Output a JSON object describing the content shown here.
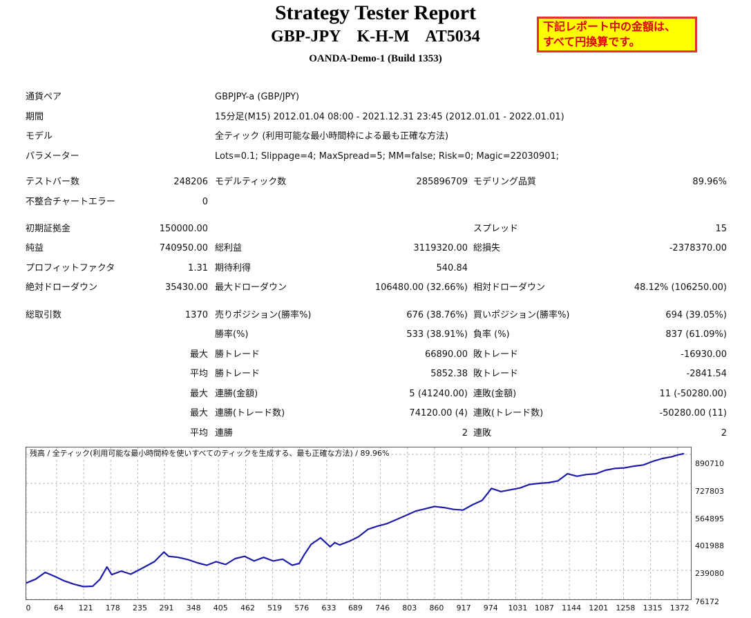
{
  "header": {
    "title": "Strategy Tester Report",
    "subtitle": "GBP-JPY    K-H-M    AT5034",
    "server": "OANDA-Demo-1 (Build 1353)",
    "notice_line1": "下記レポート中の金額は、",
    "notice_line2": "すべて円換算です。"
  },
  "settings": {
    "symbol_label": "通貨ペア",
    "symbol_value": "GBPJPY-a (GBP/JPY)",
    "period_label": "期間",
    "period_value": "15分足(M15) 2012.01.04 08:00 - 2021.12.31 23:45 (2012.01.01 - 2022.01.01)",
    "model_label": "モデル",
    "model_value": "全ティック (利用可能な最小時間枠による最も正確な方法)",
    "params_label": "パラメーター",
    "params_value": "Lots=0.1; Slippage=4; MaxSpread=5; MM=false; Risk=0; Magic=22030901;"
  },
  "stats": {
    "bars_label": "テストバー数",
    "bars_value": "248206",
    "ticks_label": "モデルティック数",
    "ticks_value": "285896709",
    "quality_label": "モデリング品質",
    "quality_value": "89.96%",
    "mismatch_label": "不整合チャートエラー",
    "mismatch_value": "0",
    "deposit_label": "初期証拠金",
    "deposit_value": "150000.00",
    "spread_label": "スプレッド",
    "spread_value": "15",
    "net_label": "純益",
    "net_value": "740950.00",
    "gross_profit_label": "総利益",
    "gross_profit_value": "3119320.00",
    "gross_loss_label": "総損失",
    "gross_loss_value": "-2378370.00",
    "pf_label": "プロフィットファクタ",
    "pf_value": "1.31",
    "payoff_label": "期待利得",
    "payoff_value": "540.84",
    "abs_dd_label": "絶対ドローダウン",
    "abs_dd_value": "35430.00",
    "max_dd_label": "最大ドローダウン",
    "max_dd_value": "106480.00 (32.66%)",
    "rel_dd_label": "相対ドローダウン",
    "rel_dd_value": "48.12% (106250.00)",
    "trades_label": "総取引数",
    "trades_value": "1370",
    "short_label": "売りポジション(勝率%)",
    "short_value": "676 (38.76%)",
    "long_label": "買いポジション(勝率%)",
    "long_value": "694 (39.05%)",
    "win_rate_label": "勝率(%)",
    "win_rate_value": "533 (38.91%)",
    "loss_rate_label": "負率 (%)",
    "loss_rate_value": "837 (61.09%)",
    "largest_label": "最大",
    "largest_win_label": "勝トレード",
    "largest_win_value": "66890.00",
    "largest_loss_label": "敗トレード",
    "largest_loss_value": "-16930.00",
    "average_label": "平均",
    "average_win_label": "勝トレード",
    "average_win_value": "5852.38",
    "average_loss_label": "敗トレード",
    "average_loss_value": "-2841.54",
    "max_label_a": "最大",
    "consec_wins_money_label": "連勝(金額)",
    "consec_wins_money_value": "5 (41240.00)",
    "consec_losses_money_label": "連敗(金額)",
    "consec_losses_money_value": "11 (-50280.00)",
    "max_label_b": "最大",
    "consec_wins_count_label": "連勝(トレード数)",
    "consec_wins_count_value": "74120.00 (4)",
    "consec_losses_count_label": "連敗(トレード数)",
    "consec_losses_count_value": "-50280.00 (11)",
    "avg_label_b": "平均",
    "avg_consec_wins_label": "連勝",
    "avg_consec_wins_value": "2",
    "avg_consec_losses_label": "連敗",
    "avg_consec_losses_value": "2"
  },
  "chart_data": {
    "type": "line",
    "legend": "残高 / 全ティック(利用可能な最小時間枠を使いすべてのティックを生成する、最も正確な方法) / 89.96%",
    "color": "#1c1ca8",
    "grid": true,
    "xlim": [
      0,
      1400
    ],
    "ylim": [
      76172,
      930000
    ],
    "x_ticks": [
      "0",
      "64",
      "121",
      "178",
      "235",
      "291",
      "348",
      "405",
      "462",
      "519",
      "576",
      "633",
      "689",
      "746",
      "803",
      "860",
      "917",
      "974",
      "1031",
      "1087",
      "1144",
      "1201",
      "1258",
      "1315",
      "1372"
    ],
    "y_ticks": [
      "890710",
      "727803",
      "564895",
      "401988",
      "239080",
      "76172"
    ],
    "series": [
      {
        "x": [
          0,
          20,
          40,
          60,
          80,
          100,
          120,
          140,
          155,
          170,
          180,
          200,
          220,
          240,
          270,
          290,
          300,
          320,
          340,
          360,
          380,
          400,
          420,
          440,
          460,
          480,
          500,
          520,
          540,
          560,
          575,
          585,
          600,
          620,
          640,
          650,
          660,
          680,
          700,
          720,
          740,
          760,
          780,
          800,
          820,
          840,
          860,
          880,
          900,
          920,
          940,
          960,
          980,
          1000,
          1020,
          1040,
          1060,
          1080,
          1100,
          1120,
          1140,
          1160,
          1180,
          1200,
          1220,
          1240,
          1260,
          1280,
          1300,
          1320,
          1340,
          1360,
          1372,
          1385
        ],
        "y": [
          168000,
          190000,
          228000,
          205000,
          180000,
          162000,
          148000,
          150000,
          188000,
          258000,
          215000,
          235000,
          218000,
          245000,
          288000,
          342000,
          318000,
          312000,
          300000,
          282000,
          268000,
          288000,
          272000,
          305000,
          318000,
          292000,
          312000,
          292000,
          302000,
          268000,
          278000,
          325000,
          385000,
          422000,
          372000,
          395000,
          382000,
          402000,
          428000,
          470000,
          488000,
          502000,
          525000,
          548000,
          572000,
          585000,
          598000,
          592000,
          582000,
          578000,
          608000,
          632000,
          700000,
          682000,
          692000,
          702000,
          722000,
          728000,
          732000,
          742000,
          782000,
          768000,
          778000,
          782000,
          802000,
          812000,
          815000,
          825000,
          832000,
          852000,
          868000,
          878000,
          888000,
          895000
        ]
      }
    ]
  }
}
